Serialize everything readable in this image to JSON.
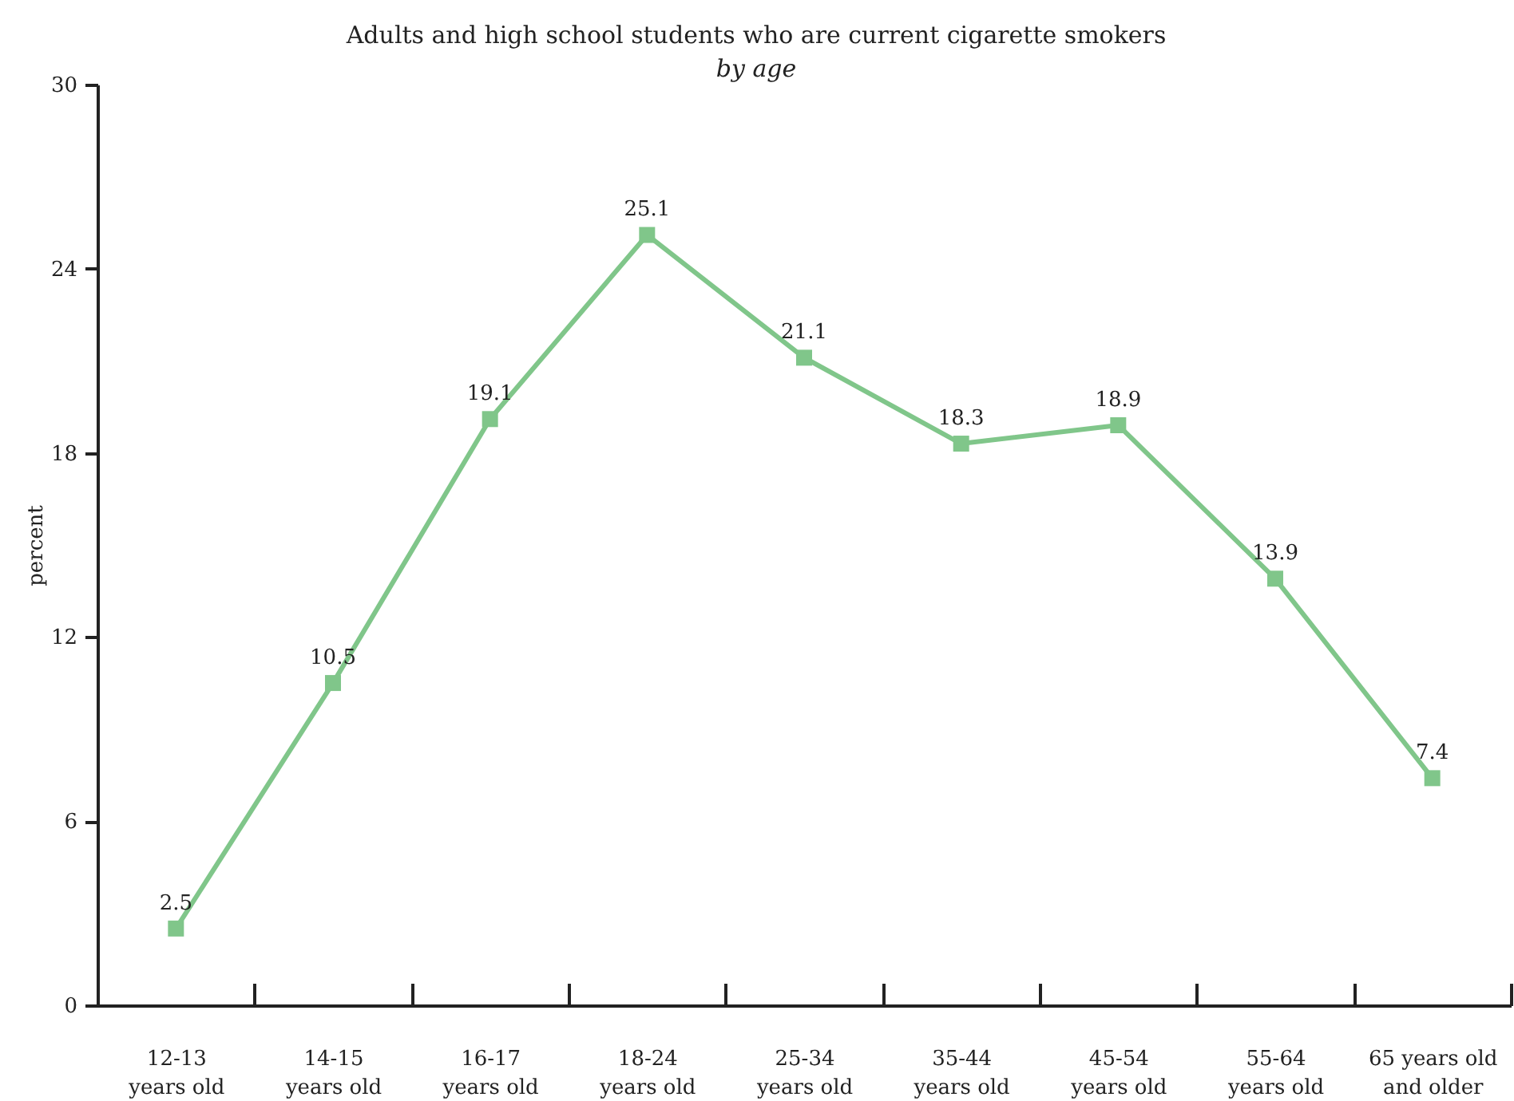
{
  "chart_data": {
    "type": "line",
    "title": "Adults and high school students who are current cigarette smokers",
    "subtitle": "by age",
    "ylabel": "percent",
    "categories": [
      "12-13\nyears old",
      "14-15\nyears old",
      "16-17\nyears old",
      "18-24\nyears old",
      "25-34\nyears old",
      "35-44\nyears old",
      "45-54\nyears old",
      "55-64\nyears old",
      "65 years old\nand older"
    ],
    "series": [
      {
        "color": "#80c68a",
        "values": [
          2.5,
          10.5,
          19.1,
          25.1,
          21.1,
          18.3,
          18.9,
          13.9,
          7.4
        ]
      }
    ],
    "ylim": [
      0,
      30
    ],
    "yticks": [
      0,
      6,
      12,
      18,
      24,
      30
    ],
    "marker": "square",
    "line_style": "solid",
    "data_labels": true
  }
}
